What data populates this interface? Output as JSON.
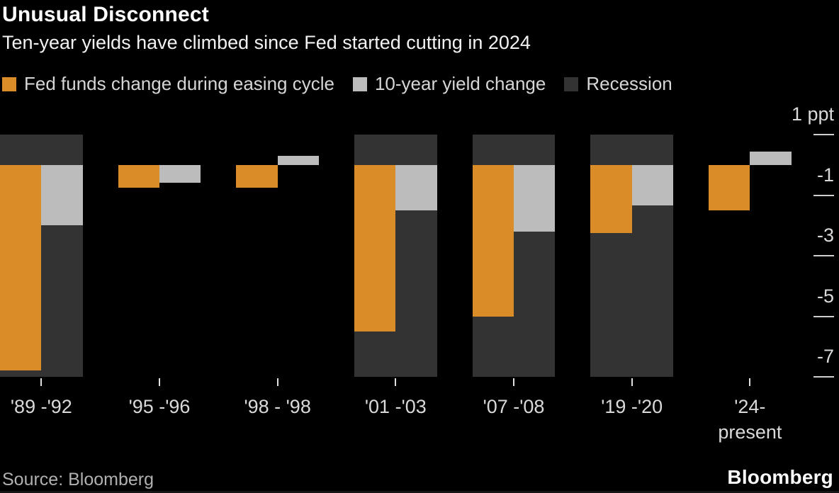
{
  "header": {
    "title": "Unusual Disconnect",
    "subtitle": "Ten-year yields have climbed since Fed started cutting in 2024"
  },
  "legend": [
    {
      "label": "Fed funds change during easing cycle",
      "color": "#d98c28"
    },
    {
      "label": "10-year yield change",
      "color": "#bcbcbc"
    },
    {
      "label": "Recession",
      "color": "#333333"
    }
  ],
  "chart_data": {
    "type": "bar",
    "title": "Unusual Disconnect",
    "subtitle": "Ten-year yields have climbed since Fed started cutting in 2024",
    "unit": "ppt",
    "categories": [
      "'89 -'92",
      "'95 -'96",
      "'98 - '98",
      "'01 -'03",
      "'07 -'08",
      "'19 -'20",
      "'24-\npresent"
    ],
    "series": [
      {
        "name": "Fed funds change during easing cycle",
        "color": "#d98c28",
        "values": [
          -6.8,
          -0.75,
          -0.75,
          -5.5,
          -5.0,
          -2.25,
          -1.5
        ]
      },
      {
        "name": "10-year yield change",
        "color": "#bcbcbc",
        "values": [
          -2.0,
          -0.6,
          0.3,
          -1.5,
          -2.2,
          -1.35,
          0.45
        ]
      }
    ],
    "recession": [
      true,
      false,
      false,
      true,
      true,
      true,
      false
    ],
    "recession_color": "#333333",
    "ylim": [
      -7,
      1
    ],
    "yticks": [
      1,
      -1,
      -3,
      -5,
      -7
    ],
    "ytick_labels": [
      "1 ppt",
      "-1",
      "-3",
      "-5",
      "-7"
    ],
    "grid": false,
    "legend_position": "top"
  },
  "footer": {
    "source": "Source: Bloomberg",
    "logo": "Bloomberg"
  }
}
